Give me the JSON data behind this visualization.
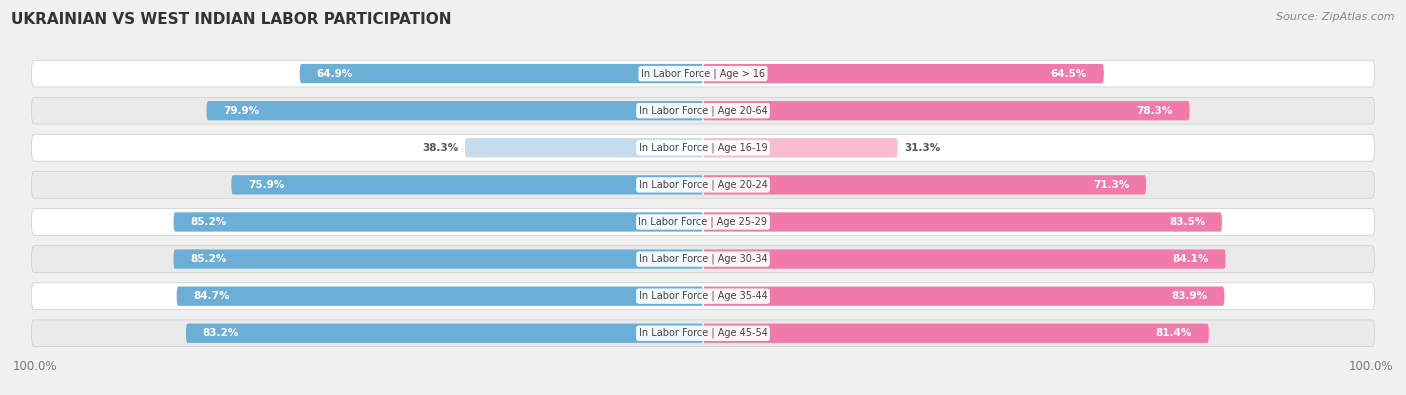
{
  "title": "UKRAINIAN VS WEST INDIAN LABOR PARTICIPATION",
  "source": "Source: ZipAtlas.com",
  "categories": [
    "In Labor Force | Age > 16",
    "In Labor Force | Age 20-64",
    "In Labor Force | Age 16-19",
    "In Labor Force | Age 20-24",
    "In Labor Force | Age 25-29",
    "In Labor Force | Age 30-34",
    "In Labor Force | Age 35-44",
    "In Labor Force | Age 45-54"
  ],
  "ukrainian_values": [
    64.9,
    79.9,
    38.3,
    75.9,
    85.2,
    85.2,
    84.7,
    83.2
  ],
  "west_indian_values": [
    64.5,
    78.3,
    31.3,
    71.3,
    83.5,
    84.1,
    83.9,
    81.4
  ],
  "ukrainian_color": "#6BAED6",
  "ukrainian_color_light": "#C6DCEE",
  "west_indian_color": "#F07BAA",
  "west_indian_color_light": "#F9BBCF",
  "max_value": 100.0,
  "bg_color": "#F0F0F0",
  "row_bg_color": "#FFFFFF",
  "row_alt_bg": "#EBEBEB",
  "label_color_dark": "#555555",
  "label_color_white": "#FFFFFF",
  "title_color": "#333333",
  "source_color": "#888888"
}
